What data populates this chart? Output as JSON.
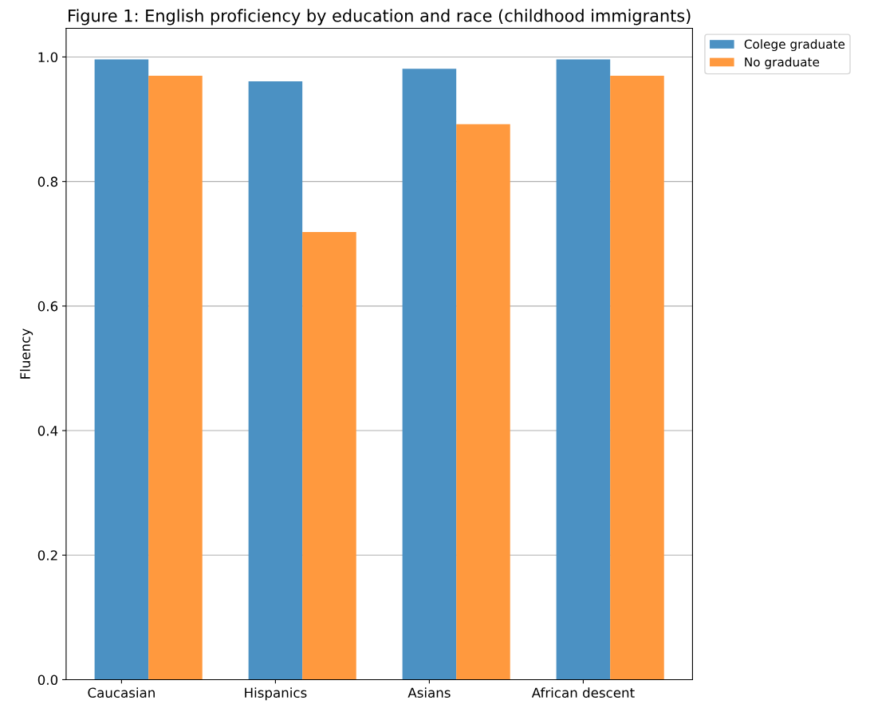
{
  "chart_data": {
    "type": "bar",
    "title": "Figure 1: English proficiency by education and race (childhood immigrants)",
    "ylabel": "Fluency",
    "categories": [
      "Caucasian",
      "Hispanics",
      "Asians",
      "African descent"
    ],
    "series": [
      {
        "name": "Colege graduate",
        "color": "#4b91c3",
        "values": [
          0.996,
          0.961,
          0.981,
          0.996
        ]
      },
      {
        "name": "No graduate",
        "color": "#ff993e",
        "values": [
          0.97,
          0.719,
          0.892,
          0.97
        ]
      }
    ],
    "ylim": [
      0,
      1.046
    ],
    "yticks": [
      {
        "value": 0,
        "label": "0.0"
      },
      0.2,
      0.4,
      0.6,
      0.8,
      {
        "value": 1,
        "label": "1.0"
      }
    ],
    "grid": "y",
    "legend": "top right"
  }
}
